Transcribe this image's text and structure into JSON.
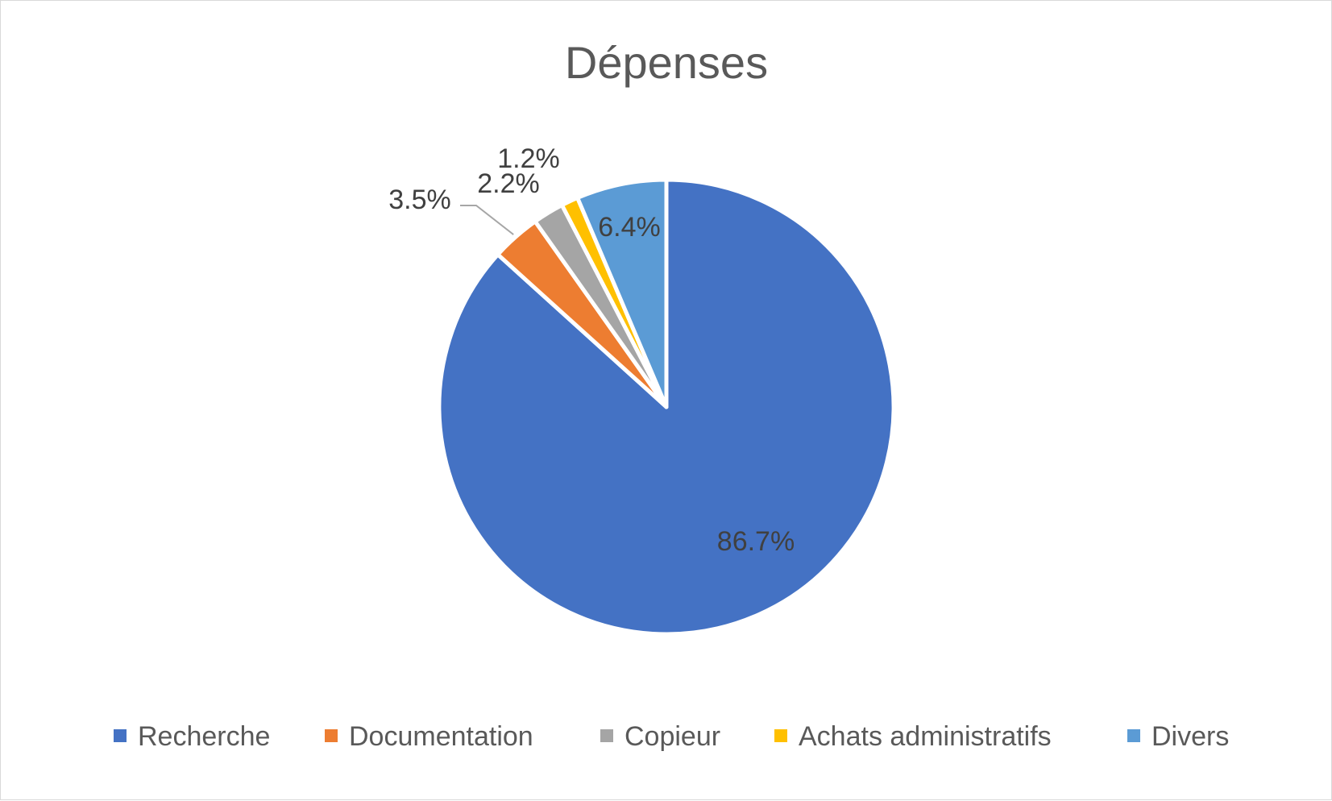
{
  "chart_data": {
    "type": "pie",
    "title": "Dépenses",
    "categories": [
      "Recherche",
      "Documentation",
      "Copieur",
      "Achats administratifs",
      "Divers"
    ],
    "values": [
      86.7,
      3.5,
      2.2,
      1.2,
      6.4
    ],
    "data_labels": [
      "86.7%",
      "3.5%",
      "2.2%",
      "1.2%",
      "6.4%"
    ],
    "colors": [
      "#4472c4",
      "#ed7d31",
      "#a5a5a5",
      "#ffc000",
      "#5b9bd5"
    ],
    "start_angle": "12 o'clock",
    "direction": "clockwise",
    "legend_position": "bottom"
  }
}
